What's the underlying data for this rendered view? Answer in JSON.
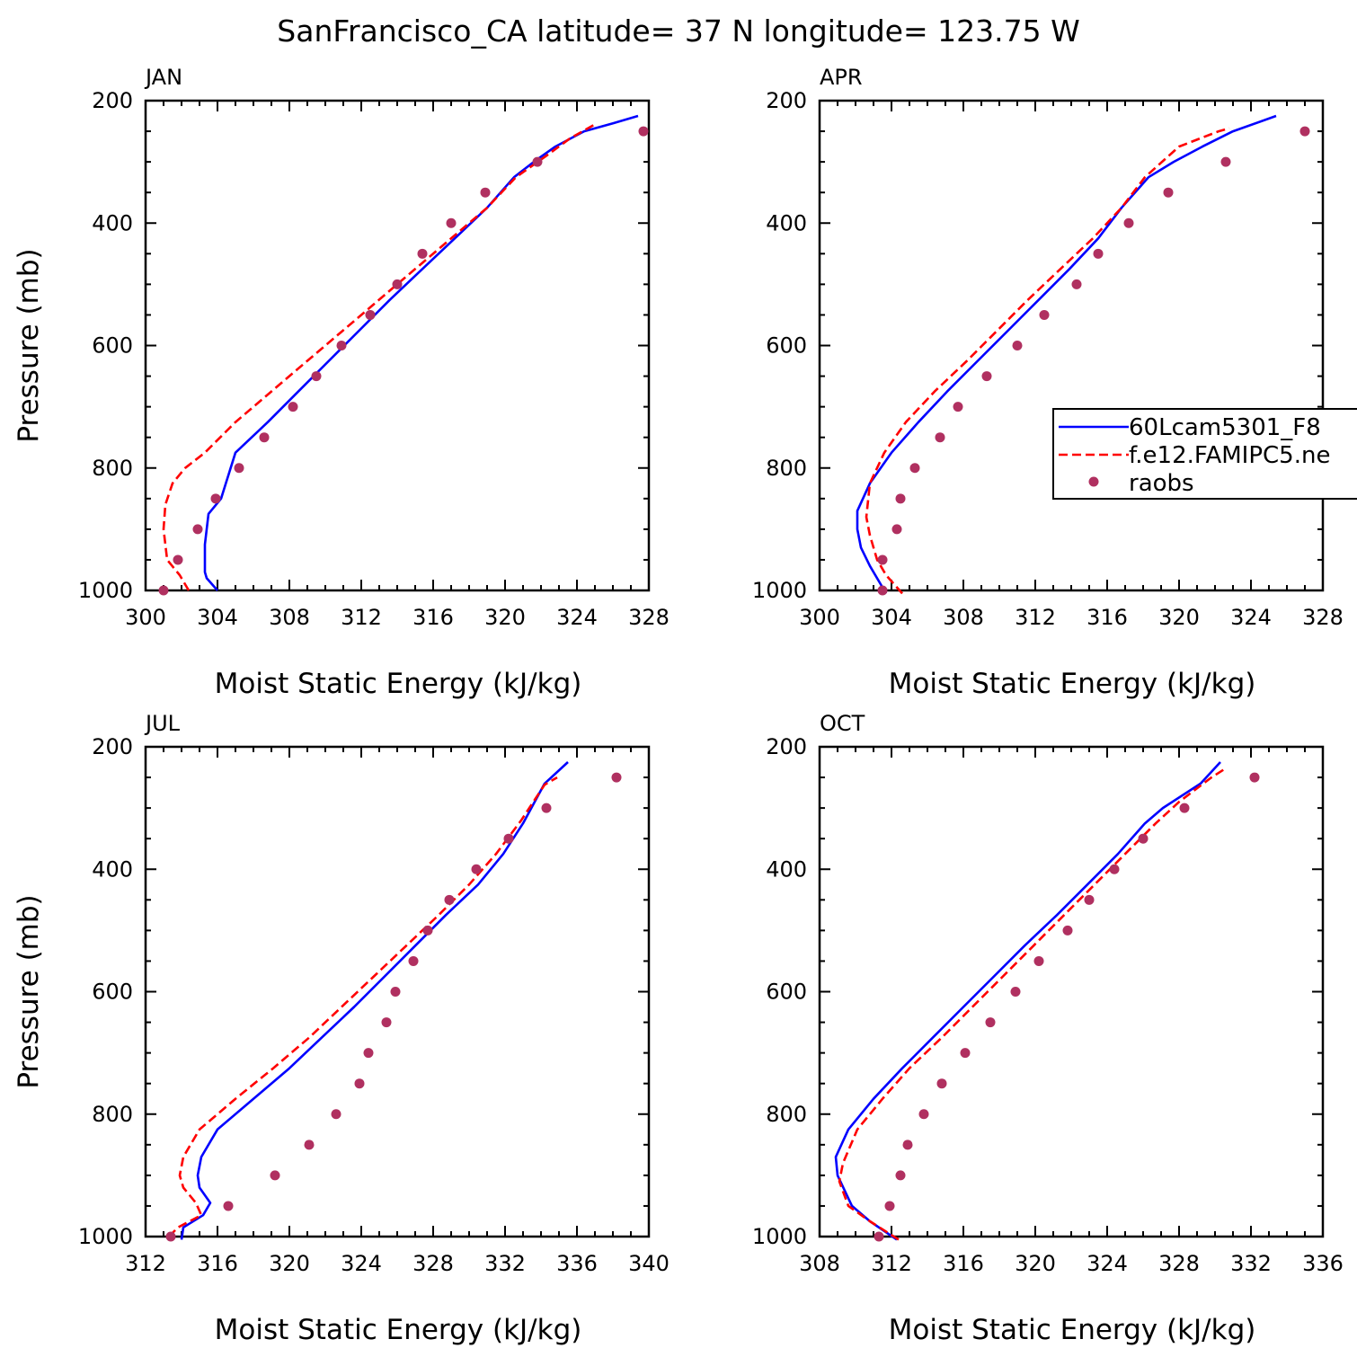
{
  "figure_title": "SanFrancisco_CA  latitude= 37 N longitude= 123.75 W",
  "colors": {
    "model": "#0000ff",
    "control": "#ff0000",
    "obs": "#b03060",
    "axis": "#000000"
  },
  "chart_data": [
    {
      "type": "line",
      "panel": "JAN",
      "title": "",
      "xlabel": "Moist Static Energy (kJ/kg)",
      "ylabel": "Pressure (mb)",
      "xlim": [
        300,
        328
      ],
      "ylim": [
        200,
        1000
      ],
      "xticks": [
        "300",
        "304",
        "308",
        "312",
        "316",
        "320",
        "324",
        "328"
      ],
      "yticks": [
        "200",
        "400",
        "600",
        "800",
        "1000"
      ],
      "series": [
        {
          "name": "60Lcam5301_F8",
          "style": "solid",
          "x": [
            304.0,
            303.4,
            303.3,
            303.3,
            303.5,
            304.2,
            305.0,
            306.8,
            308.5,
            310.2,
            311.9,
            313.6,
            315.4,
            317.2,
            319.0,
            320.5,
            321.6,
            322.8,
            324.4,
            326.0,
            327.4
          ],
          "y": [
            1000,
            980,
            970,
            925,
            875,
            850,
            775,
            725,
            675,
            625,
            575,
            525,
            475,
            425,
            375,
            325,
            300,
            275,
            250,
            237,
            225
          ]
        },
        {
          "name": "f.e12.FAMIPC5.ne",
          "style": "dashed",
          "x": [
            302.4,
            301.9,
            301.2,
            301.0,
            301.1,
            301.5,
            302.2,
            303.3,
            305.0,
            307.0,
            309.0,
            311.0,
            313.0,
            315.0,
            317.0,
            319.0,
            320.6,
            322.3,
            323.6,
            325.1
          ],
          "y": [
            1000,
            975,
            950,
            900,
            860,
            825,
            800,
            775,
            725,
            675,
            625,
            575,
            525,
            475,
            425,
            375,
            325,
            290,
            262,
            237
          ]
        },
        {
          "name": "raobs",
          "style": "markers",
          "x": [
            301.0,
            301.8,
            302.9,
            303.9,
            305.2,
            306.6,
            308.2,
            309.5,
            310.9,
            312.5,
            314.0,
            315.4,
            317.0,
            318.9,
            321.8,
            327.7
          ],
          "y": [
            1000,
            950,
            900,
            850,
            800,
            750,
            700,
            650,
            600,
            550,
            500,
            450,
            400,
            350,
            300,
            250
          ]
        }
      ]
    },
    {
      "type": "line",
      "panel": "APR",
      "title": "",
      "xlabel": "Moist Static Energy (kJ/kg)",
      "ylabel": "",
      "xlim": [
        300,
        328
      ],
      "ylim": [
        200,
        1000
      ],
      "xticks": [
        "300",
        "304",
        "308",
        "312",
        "316",
        "320",
        "324",
        "328"
      ],
      "yticks": [
        "200",
        "400",
        "600",
        "800",
        "1000"
      ],
      "series": [
        {
          "name": "60Lcam5301_F8",
          "style": "solid",
          "x": [
            303.7,
            302.8,
            302.3,
            302.1,
            302.1,
            302.8,
            304.0,
            305.5,
            307.1,
            308.8,
            310.5,
            312.2,
            313.9,
            315.5,
            316.8,
            318.3,
            319.7,
            321.3,
            323.0,
            325.4
          ],
          "y": [
            1005,
            960,
            930,
            900,
            870,
            825,
            775,
            725,
            675,
            625,
            575,
            525,
            475,
            425,
            375,
            325,
            300,
            275,
            250,
            225
          ]
        },
        {
          "name": "f.e12.FAMIPC5.ne",
          "style": "dashed",
          "x": [
            304.6,
            303.7,
            303.2,
            302.8,
            302.6,
            302.8,
            303.6,
            304.8,
            306.4,
            308.2,
            309.9,
            311.6,
            313.4,
            315.2,
            316.8,
            318.1,
            320.0,
            322.2,
            322.8
          ],
          "y": [
            1005,
            975,
            950,
            910,
            880,
            825,
            775,
            725,
            675,
            625,
            575,
            525,
            475,
            425,
            375,
            325,
            275,
            250,
            245
          ]
        },
        {
          "name": "raobs",
          "style": "markers",
          "x": [
            303.5,
            303.5,
            304.3,
            304.5,
            305.3,
            306.7,
            307.7,
            309.3,
            311.0,
            312.5,
            314.3,
            315.5,
            317.2,
            319.4,
            322.6,
            327.0
          ],
          "y": [
            1000,
            950,
            900,
            850,
            800,
            750,
            700,
            650,
            600,
            550,
            500,
            450,
            400,
            350,
            300,
            250
          ]
        }
      ]
    },
    {
      "type": "line",
      "panel": "JUL",
      "title": "",
      "xlabel": "Moist Static Energy (kJ/kg)",
      "ylabel": "Pressure (mb)",
      "xlim": [
        312,
        340
      ],
      "ylim": [
        200,
        1000
      ],
      "xticks": [
        "312",
        "316",
        "320",
        "324",
        "328",
        "332",
        "336",
        "340"
      ],
      "yticks": [
        "200",
        "400",
        "600",
        "800",
        "1000"
      ],
      "series": [
        {
          "name": "60Lcam5301_F8",
          "style": "solid",
          "x": [
            314.0,
            314.1,
            315.2,
            315.6,
            315.0,
            314.9,
            315.1,
            316.0,
            318.0,
            320.0,
            321.8,
            323.6,
            325.3,
            327.0,
            328.7,
            330.5,
            331.9,
            333.0,
            334.2,
            335.5
          ],
          "y": [
            1005,
            985,
            965,
            945,
            920,
            900,
            870,
            825,
            775,
            725,
            675,
            625,
            575,
            525,
            475,
            425,
            375,
            325,
            260,
            225
          ]
        },
        {
          "name": "f.e12.FAMIPC5.ne",
          "style": "dashed",
          "x": [
            313.3,
            313.8,
            315.1,
            314.8,
            314.1,
            313.9,
            314.1,
            315.0,
            317.0,
            319.1,
            321.1,
            322.9,
            324.7,
            326.5,
            328.3,
            330.0,
            331.5,
            332.9,
            334.2,
            334.9
          ],
          "y": [
            1000,
            985,
            965,
            945,
            920,
            900,
            870,
            825,
            775,
            725,
            675,
            625,
            575,
            525,
            475,
            425,
            375,
            320,
            262,
            250
          ]
        },
        {
          "name": "raobs",
          "style": "markers",
          "x": [
            313.4,
            316.6,
            319.2,
            321.1,
            322.6,
            323.9,
            324.4,
            325.4,
            325.9,
            326.9,
            327.7,
            328.9,
            330.4,
            332.2,
            334.3,
            338.2
          ],
          "y": [
            1000,
            950,
            900,
            850,
            800,
            750,
            700,
            650,
            600,
            550,
            500,
            450,
            400,
            350,
            300,
            250
          ]
        }
      ]
    },
    {
      "type": "line",
      "panel": "OCT",
      "title": "",
      "xlabel": "Moist Static Energy (kJ/kg)",
      "ylabel": "",
      "xlim": [
        308,
        336
      ],
      "ylim": [
        200,
        1000
      ],
      "xticks": [
        "308",
        "312",
        "316",
        "320",
        "324",
        "328",
        "332",
        "336"
      ],
      "yticks": [
        "200",
        "400",
        "600",
        "800",
        "1000"
      ],
      "series": [
        {
          "name": "60Lcam5301_F8",
          "style": "solid",
          "x": [
            312.3,
            310.8,
            309.8,
            309.0,
            308.9,
            309.6,
            311.0,
            312.6,
            314.3,
            316.0,
            317.7,
            319.4,
            321.2,
            322.9,
            324.6,
            326.1,
            327.1,
            329.2,
            330.3
          ],
          "y": [
            1005,
            975,
            950,
            900,
            870,
            825,
            775,
            725,
            675,
            625,
            575,
            525,
            475,
            425,
            375,
            325,
            300,
            260,
            225
          ]
        },
        {
          "name": "f.e12.FAMIPC5.ne",
          "style": "dashed",
          "x": [
            312.4,
            310.8,
            309.6,
            309.1,
            309.3,
            310.1,
            311.5,
            313.0,
            314.8,
            316.5,
            318.2,
            319.9,
            321.6,
            323.3,
            325.0,
            326.7,
            328.0,
            329.8,
            330.5
          ],
          "y": [
            1005,
            975,
            950,
            910,
            880,
            825,
            775,
            725,
            675,
            625,
            575,
            525,
            475,
            425,
            375,
            325,
            290,
            250,
            237
          ]
        },
        {
          "name": "raobs",
          "style": "markers",
          "x": [
            311.3,
            311.9,
            312.5,
            312.9,
            313.8,
            314.8,
            316.1,
            317.5,
            318.9,
            320.2,
            321.8,
            323.0,
            324.4,
            326.0,
            328.3,
            332.2
          ],
          "y": [
            1000,
            950,
            900,
            850,
            800,
            750,
            700,
            650,
            600,
            550,
            500,
            450,
            400,
            350,
            300,
            250
          ]
        }
      ]
    }
  ],
  "legend": {
    "entries": [
      "60Lcam5301_F8",
      "f.e12.FAMIPC5.ne",
      "raobs"
    ]
  }
}
